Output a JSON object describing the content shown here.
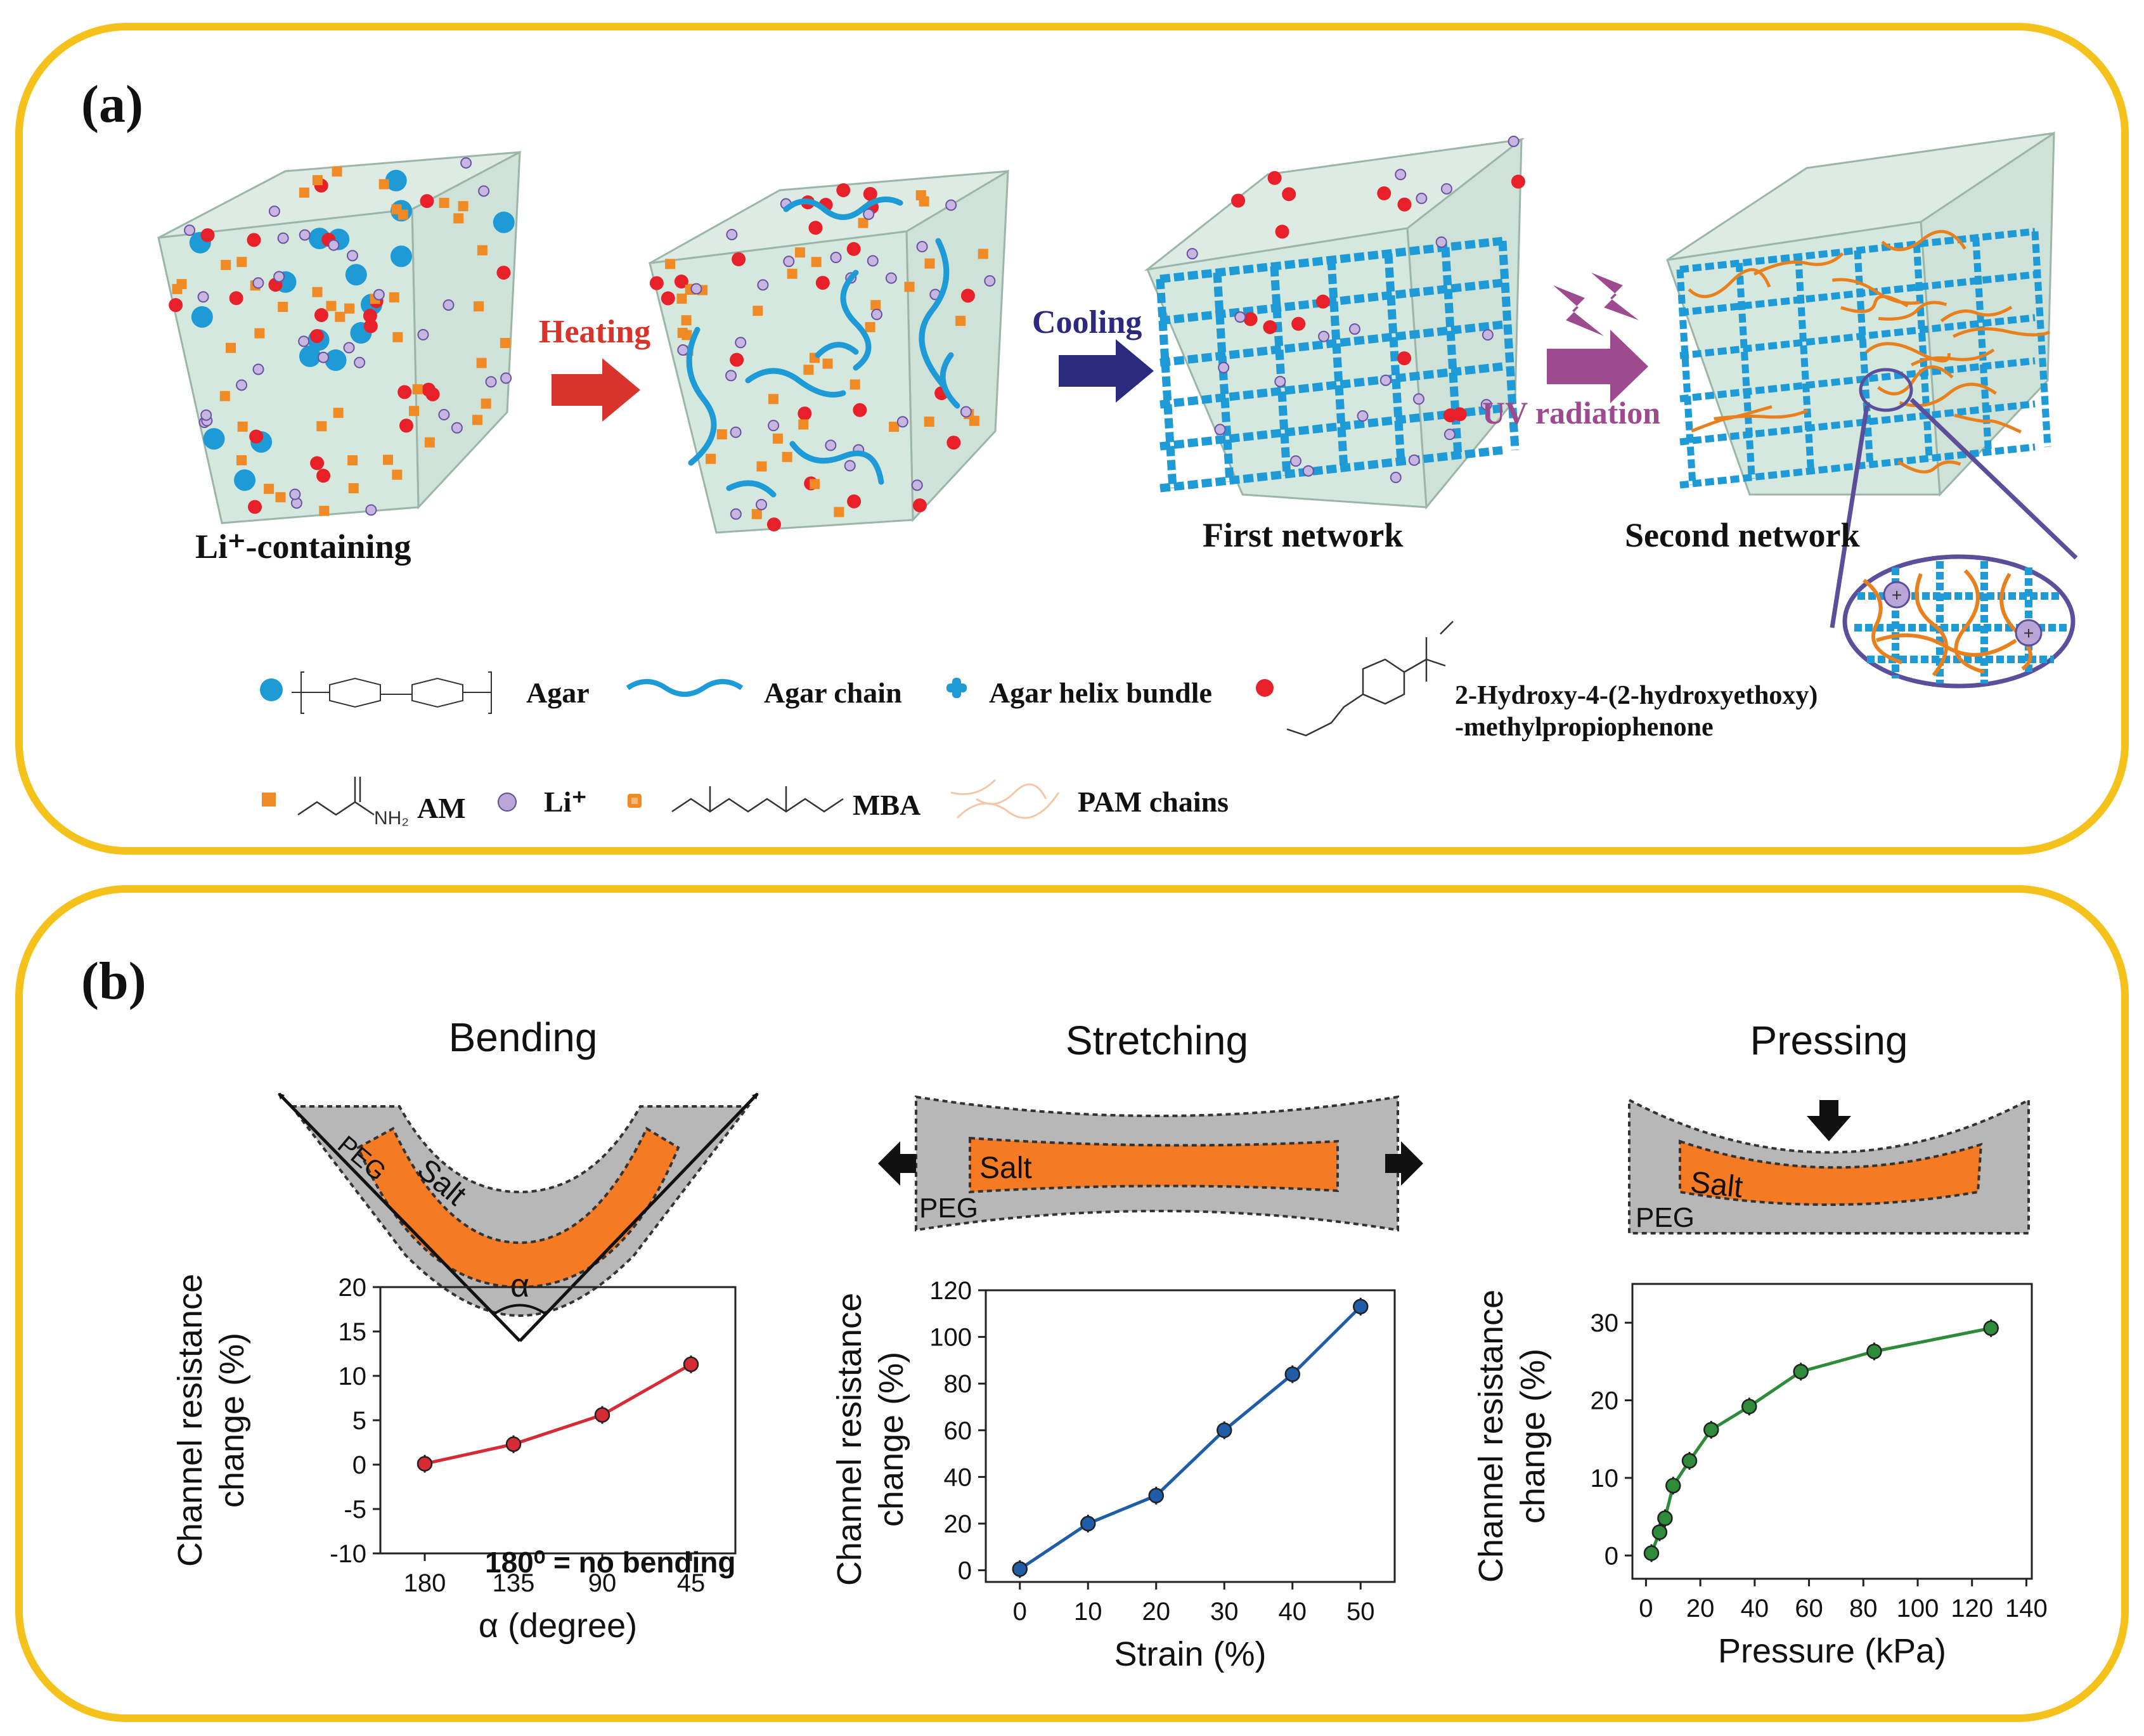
{
  "panel_a": {
    "label": "(a)",
    "stage_labels": [
      "Li⁺-containing",
      "First network",
      "Second network"
    ],
    "arrows": {
      "heating": "Heating",
      "cooling": "Cooling",
      "uv": "UV radiation"
    },
    "legend": {
      "agar": "Agar",
      "agar_chain": "Agar chain",
      "agar_helix_bundle": "Agar helix bundle",
      "photoinitiator_line1": "2-Hydroxy-4-(2-hydroxyethoxy)",
      "photoinitiator_line2": "-methylpropiophenone",
      "am": "AM",
      "li": "Li⁺",
      "mba": "MBA",
      "pam_chains": "PAM chains",
      "nh2": "NH₂"
    },
    "colors": {
      "frame": "#F5C21B",
      "agar": "#1E9AD6",
      "initiator": "#E8202A",
      "am": "#F08A24",
      "li": "#8C6BB1",
      "heating": "#D9342B",
      "cooling": "#2B2A7F",
      "uv": "#9E4A8E",
      "pam": "#E8801E"
    }
  },
  "panel_b": {
    "label": "(b)",
    "schematics": {
      "bending": {
        "title": "Bending",
        "salt": "Salt",
        "peg": "PEG",
        "angle": "α"
      },
      "stretching": {
        "title": "Stretching",
        "salt": "Salt",
        "peg": "PEG"
      },
      "pressing": {
        "title": "Pressing",
        "salt": "Salt",
        "peg": "PEG"
      }
    },
    "ylabel_line1": "Channel resistance",
    "ylabel_line2": "change (%)",
    "annotation_bending": "180⁰ = no bending"
  },
  "chart_data": [
    {
      "type": "line",
      "xlabel": "α (degree)",
      "ylabel": "Channel resistance change (%)",
      "categories": [
        "180",
        "135",
        "90",
        "45"
      ],
      "ylim": [
        -10,
        20
      ],
      "yticks": [
        -10,
        -5,
        0,
        5,
        10,
        15,
        20
      ],
      "series": [
        {
          "values": [
            0.1,
            2.3,
            5.6,
            11.3
          ],
          "color": "#D62B34"
        }
      ]
    },
    {
      "type": "line",
      "xlabel": "Strain (%)",
      "ylabel": "Channel resistance change (%)",
      "x": [
        0,
        10,
        20,
        30,
        40,
        50
      ],
      "xlim": [
        -5,
        55
      ],
      "xticks": [
        0,
        10,
        20,
        30,
        40,
        50
      ],
      "ylim": [
        -5,
        120
      ],
      "yticks": [
        0,
        20,
        40,
        60,
        80,
        100,
        120
      ],
      "series": [
        {
          "values": [
            0.5,
            20,
            32,
            60,
            84,
            113
          ],
          "color": "#1F5DA8"
        }
      ]
    },
    {
      "type": "line",
      "xlabel": "Pressure (kPa)",
      "ylabel": "Channel resistance change (%)",
      "x": [
        2,
        5,
        7,
        10,
        16,
        24,
        38,
        57,
        84,
        127
      ],
      "xlim": [
        -5,
        142
      ],
      "xticks": [
        0,
        20,
        40,
        60,
        80,
        100,
        120,
        140
      ],
      "ylim": [
        -3,
        35
      ],
      "yticks": [
        0,
        10,
        20,
        30
      ],
      "series": [
        {
          "values": [
            0.3,
            3,
            4.8,
            9,
            12.2,
            16.2,
            19.2,
            23.7,
            26.3,
            29.3
          ],
          "color": "#2E8B3A"
        }
      ]
    }
  ]
}
